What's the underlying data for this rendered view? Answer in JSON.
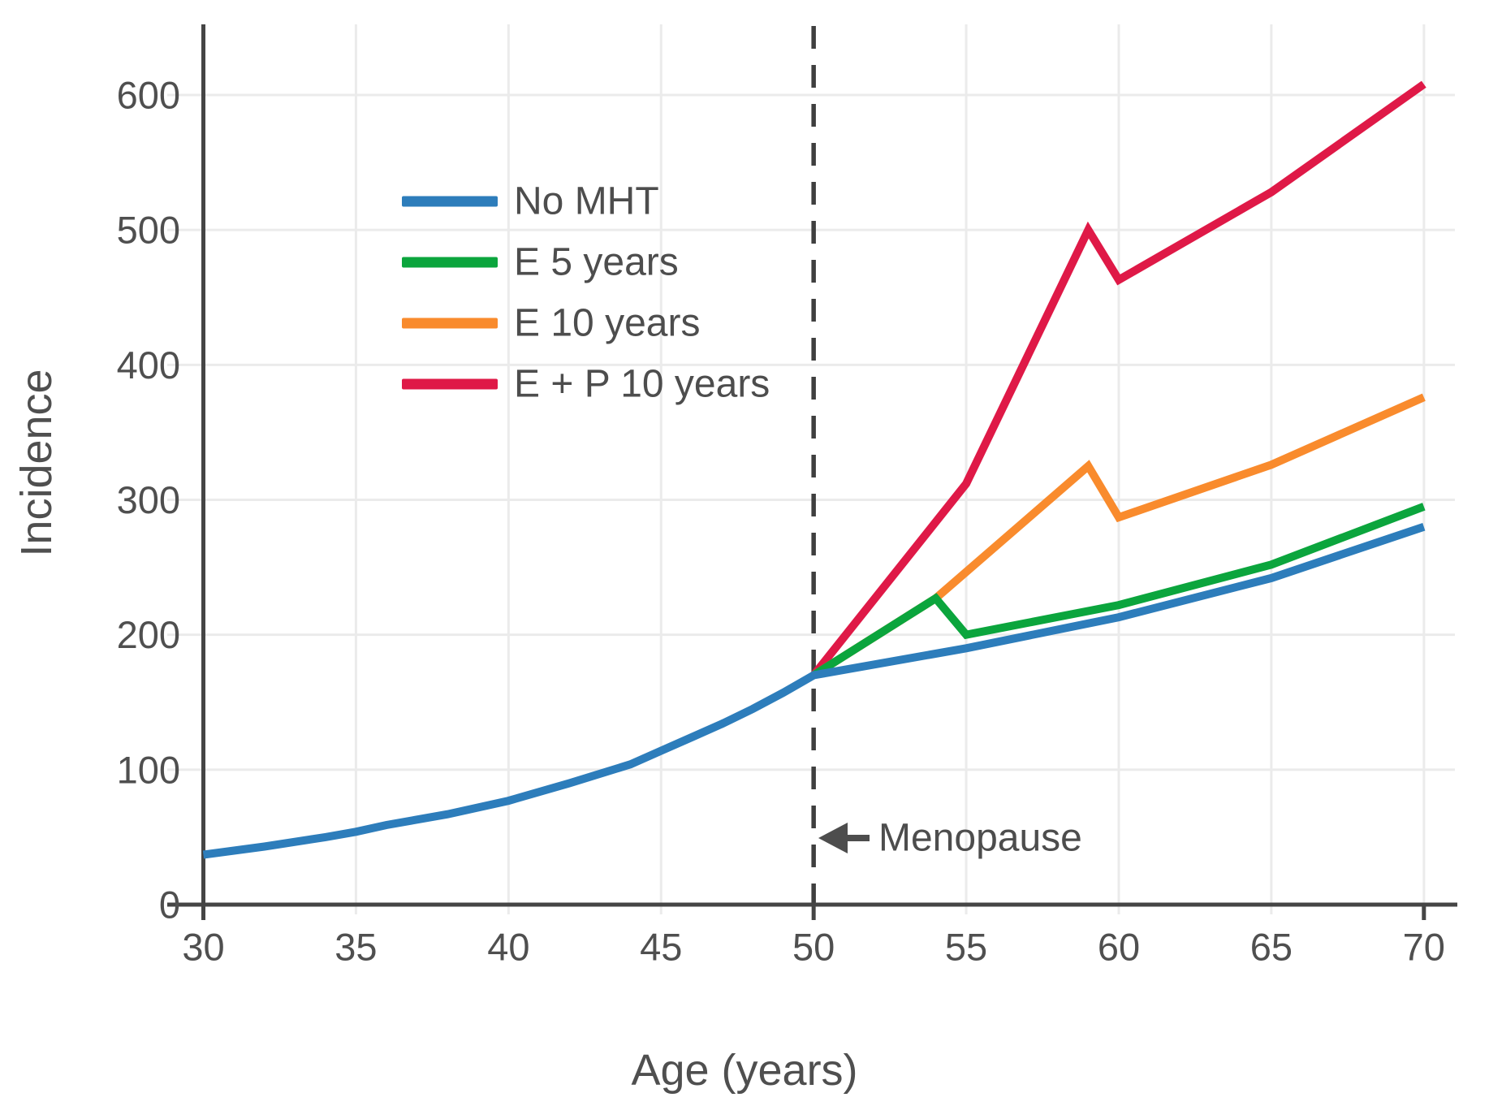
{
  "chart_data": {
    "type": "line",
    "title": "",
    "xlabel": "Age (years)",
    "ylabel": "Incidence",
    "x_ticks": [
      30,
      35,
      40,
      45,
      50,
      55,
      60,
      65,
      70
    ],
    "y_ticks": [
      0,
      100,
      200,
      300,
      400,
      500,
      600
    ],
    "xlim": [
      30,
      71
    ],
    "ylim": [
      0,
      650
    ],
    "grid": true,
    "legend_position": "upper-left-inside",
    "menopause_line_x": 50,
    "annotation": {
      "text": "Menopause",
      "arrow_direction": "left",
      "at_age": 50,
      "at_value": 49
    },
    "series": [
      {
        "name": "No MHT",
        "color": "#2d7dbb",
        "points": [
          [
            30,
            37
          ],
          [
            32,
            43
          ],
          [
            34,
            50
          ],
          [
            35,
            54
          ],
          [
            36,
            59
          ],
          [
            38,
            67
          ],
          [
            40,
            77
          ],
          [
            42,
            90
          ],
          [
            44,
            104
          ],
          [
            45,
            114
          ],
          [
            46,
            124
          ],
          [
            47,
            134
          ],
          [
            48,
            145
          ],
          [
            49,
            157
          ],
          [
            50,
            170
          ],
          [
            55,
            190
          ],
          [
            60,
            213
          ],
          [
            65,
            242
          ],
          [
            70,
            280
          ]
        ]
      },
      {
        "name": "E 5 years",
        "color": "#0ba53d",
        "points": [
          [
            50,
            170
          ],
          [
            54,
            227
          ],
          [
            55,
            200
          ],
          [
            60,
            222
          ],
          [
            65,
            252
          ],
          [
            70,
            295
          ]
        ]
      },
      {
        "name": "E 10 years",
        "color": "#f98b2d",
        "points": [
          [
            50,
            170
          ],
          [
            54,
            227
          ],
          [
            59,
            325
          ],
          [
            60,
            287
          ],
          [
            65,
            326
          ],
          [
            70,
            376
          ]
        ]
      },
      {
        "name": "E + P 10 years",
        "color": "#df1947",
        "points": [
          [
            50,
            170
          ],
          [
            55,
            312
          ],
          [
            59,
            500
          ],
          [
            60,
            463
          ],
          [
            65,
            528
          ],
          [
            70,
            608
          ]
        ]
      }
    ]
  },
  "colors": {
    "axis": "#454545",
    "dashed_line": "#3f3f3f",
    "grid": "#ebebeb",
    "text": "#4f4f4f",
    "arrow": "#4d4d4d"
  }
}
